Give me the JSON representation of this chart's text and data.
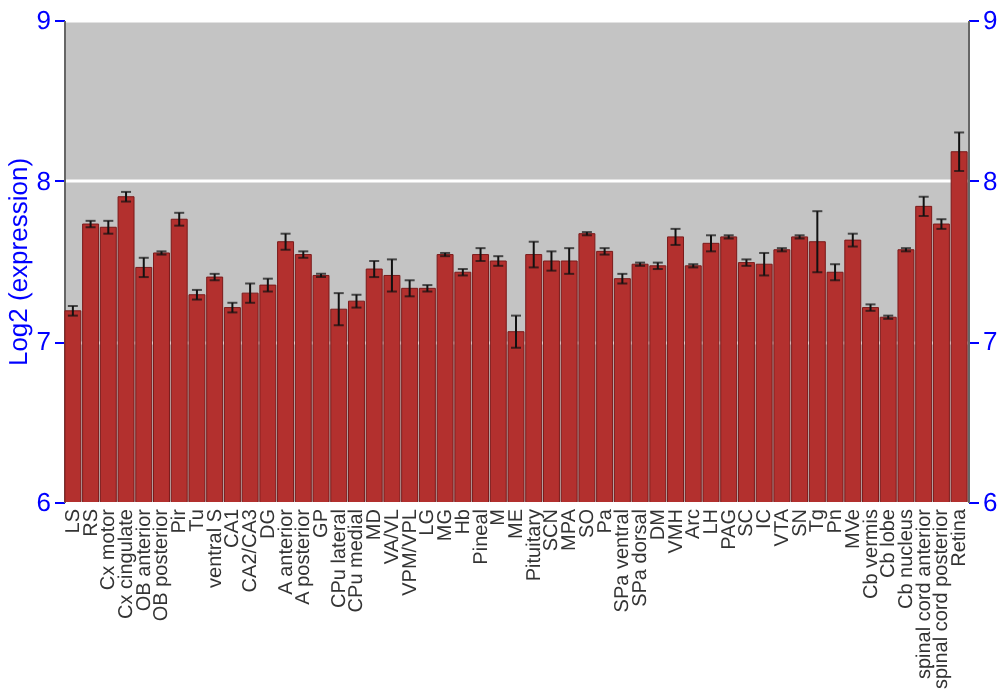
{
  "chart_data": {
    "type": "bar",
    "ylabel": "Log2 (expression)",
    "categories": [
      "LS",
      "RS",
      "Cx motor",
      "Cx cingulate",
      "OB anterior",
      "OB posterior",
      "Pir",
      "Tu",
      "ventral S",
      "CA1",
      "CA2/CA3",
      "DG",
      "A anterior",
      "A posterior",
      "GP",
      "CPu lateral",
      "CPu medial",
      "MD",
      "VA/VL",
      "VPM/VPL",
      "LG",
      "MG",
      "Hb",
      "Pineal",
      "M",
      "ME",
      "Pituitary",
      "SCN",
      "MPA",
      "SO",
      "Pa",
      "SPa ventral",
      "SPa dorsal",
      "DM",
      "VMH",
      "Arc",
      "LH",
      "PAG",
      "SC",
      "IC",
      "VTA",
      "SN",
      "Tg",
      "Pn",
      "MVe",
      "Cb vermis",
      "Cb lobe",
      "Cb nucleus",
      "spinal cord anterior",
      "spinal cord posterior",
      "Retina"
    ],
    "values": [
      7.19,
      7.73,
      7.71,
      7.9,
      7.46,
      7.55,
      7.76,
      7.29,
      7.4,
      7.21,
      7.3,
      7.35,
      7.62,
      7.54,
      7.41,
      7.2,
      7.25,
      7.45,
      7.41,
      7.33,
      7.33,
      7.54,
      7.43,
      7.54,
      7.5,
      7.06,
      7.54,
      7.5,
      7.5,
      7.67,
      7.56,
      7.39,
      7.48,
      7.47,
      7.65,
      7.47,
      7.61,
      7.65,
      7.49,
      7.48,
      7.57,
      7.65,
      7.62,
      7.43,
      7.63,
      7.21,
      7.15,
      7.57,
      7.84,
      7.73,
      8.18
    ],
    "errors": [
      0.03,
      0.02,
      0.04,
      0.03,
      0.06,
      0.01,
      0.04,
      0.03,
      0.02,
      0.03,
      0.06,
      0.04,
      0.05,
      0.02,
      0.01,
      0.1,
      0.04,
      0.05,
      0.1,
      0.05,
      0.02,
      0.01,
      0.02,
      0.04,
      0.03,
      0.1,
      0.08,
      0.06,
      0.08,
      0.01,
      0.02,
      0.03,
      0.01,
      0.02,
      0.05,
      0.01,
      0.05,
      0.01,
      0.02,
      0.07,
      0.01,
      0.01,
      0.19,
      0.05,
      0.04,
      0.02,
      0.01,
      0.01,
      0.06,
      0.03,
      0.12
    ],
    "color": "#b3302e",
    "ylim": [
      6,
      9
    ],
    "yticks": [
      6,
      7,
      8,
      9
    ],
    "y2lim": [
      6,
      9
    ],
    "y2ticks": [
      6,
      7,
      8,
      9
    ],
    "grid": "y"
  }
}
